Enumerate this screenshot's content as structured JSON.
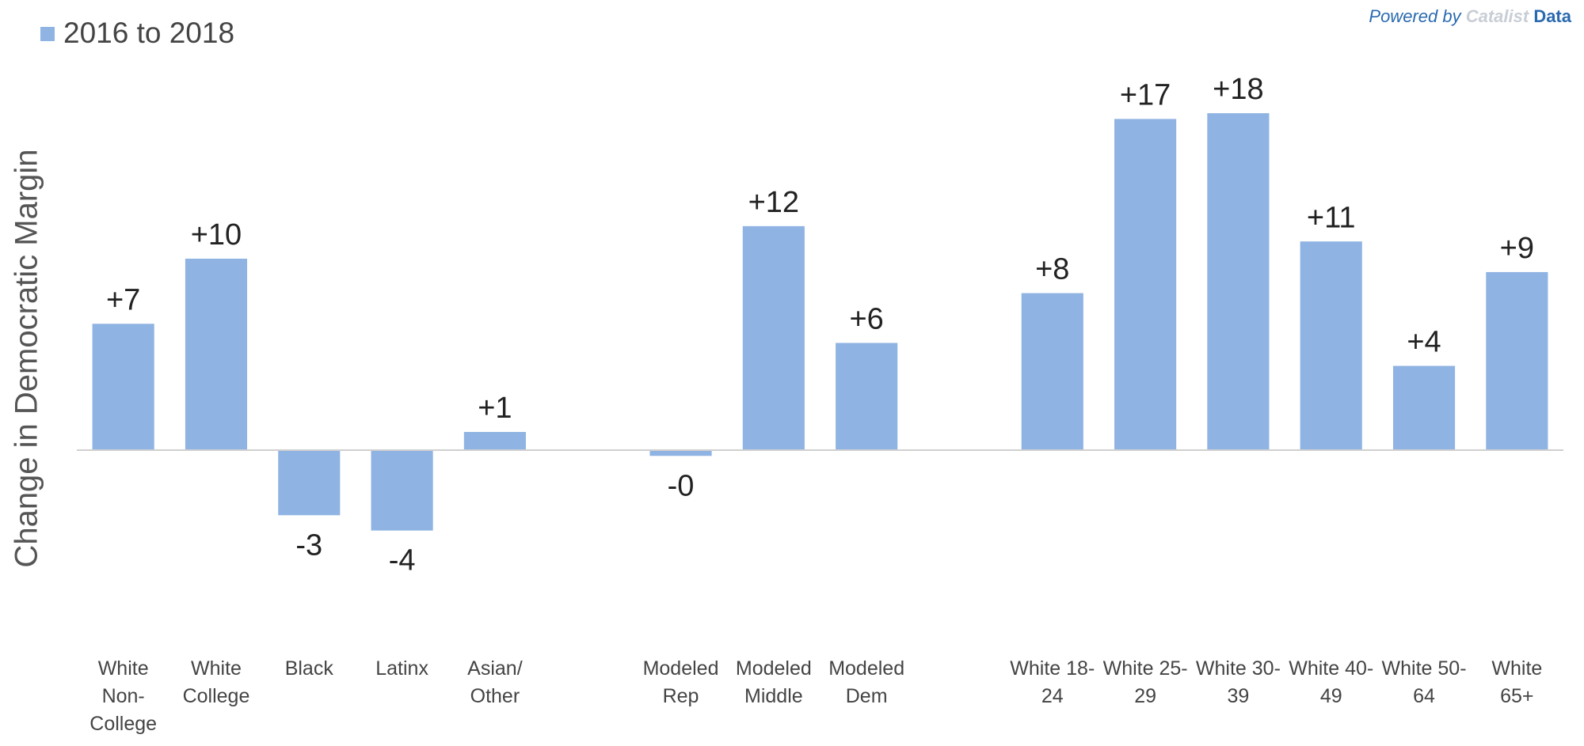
{
  "chart_data": {
    "type": "bar",
    "y_label": "Change in Democratic Margin",
    "series": [
      {
        "name": "2016 to 2018",
        "color": "#8fb3e2",
        "values": [
          6.6,
          10,
          -3.4,
          -4.2,
          0.95,
          null,
          -0.3,
          11.7,
          5.6,
          null,
          8.2,
          17.3,
          17.6,
          10.9,
          4.4,
          9.3
        ],
        "value_labels": [
          "+7",
          "+10",
          "-3",
          "-4",
          "+1",
          null,
          "-0",
          "+12",
          "+6",
          null,
          "+8",
          "+17",
          "+18",
          "+11",
          "+4",
          "+9"
        ]
      }
    ],
    "categories": [
      "White Non-College",
      "White College",
      "Black",
      "Latinx",
      "Asian/ Other",
      null,
      "Modeled Rep",
      "Modeled Middle",
      "Modeled Dem",
      null,
      "White 18-24",
      "White 25-29",
      "White 30-39",
      "White 40-49",
      "White 50-64",
      "White 65+"
    ],
    "ylim": [
      -10,
      20
    ],
    "grid": false,
    "legend": "top-left"
  },
  "logo": {
    "prefix": "Powered by",
    "brand": "Catalist",
    "suffix": "Data"
  }
}
